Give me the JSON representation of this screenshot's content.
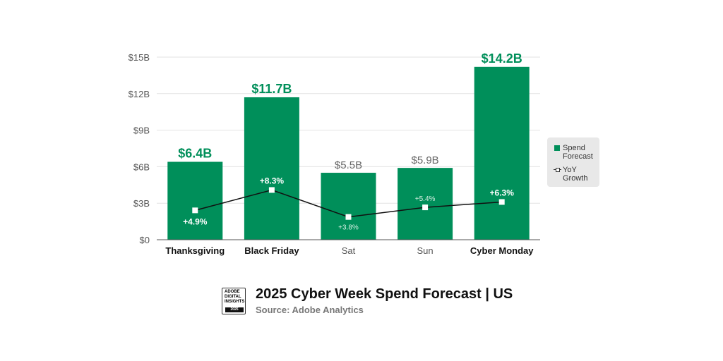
{
  "chart_data": {
    "type": "bar",
    "title": "2025 Cyber Week Spend Forecast | US",
    "subtitle": "Source: Adobe Analytics",
    "categories": [
      "Thanksgiving",
      "Black Friday",
      "Sat",
      "Sun",
      "Cyber Monday"
    ],
    "highlighted": [
      true,
      true,
      false,
      false,
      true
    ],
    "series": [
      {
        "name": "Spend Forecast",
        "type": "bar",
        "values": [
          6.4,
          11.7,
          5.5,
          5.9,
          14.2
        ],
        "labels": [
          "$6.4B",
          "$11.7B",
          "$5.5B",
          "$5.9B",
          "$14.2B"
        ],
        "color": "#008f5a"
      },
      {
        "name": "YoY Growth",
        "type": "line",
        "values": [
          4.9,
          8.3,
          3.8,
          5.4,
          6.3
        ],
        "labels": [
          "+4.9%",
          "+8.3%",
          "+3.8%",
          "+5.4%",
          "+6.3%"
        ],
        "color": "#111111"
      }
    ],
    "yticks": [
      "$0",
      "$3B",
      "$6B",
      "$9B",
      "$12B",
      "$15B"
    ],
    "ylim": [
      0,
      15
    ],
    "grid": true,
    "legend": "right"
  },
  "legend": {
    "spend_line1": "Spend",
    "spend_line2": "Forecast",
    "yoy_line1": "YoY",
    "yoy_line2": "Growth"
  },
  "logo": {
    "text": "ADOBE DIGITAL INSIGHTS",
    "year": "2025"
  },
  "colors": {
    "accent": "#008f5a",
    "label_grey": "#666666"
  }
}
